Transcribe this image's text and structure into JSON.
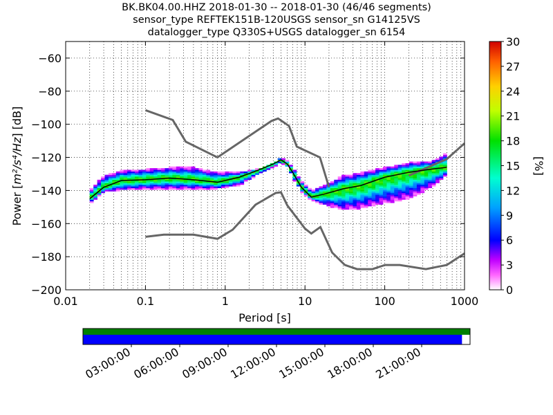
{
  "title": {
    "line1": "BK.BK04.00.HHZ   2018-01-30 -- 2018-01-30  (46/46 segments)",
    "line2": "sensor_type REFTEK151B-120USGS sensor_sn G14125VS",
    "line3": "datalogger_type Q330S+USGS datalogger_sn 6154"
  },
  "chart_data": {
    "type": "heatmap",
    "xlabel": "Period [s]",
    "ylabel": "Power [m²/s⁴/Hz] [dB]",
    "xscale": "log",
    "xlim": [
      0.01,
      1000
    ],
    "ylim": [
      -200,
      -50
    ],
    "xtick_labels": [
      "0.01",
      "0.1",
      "1",
      "10",
      "100",
      "1000"
    ],
    "xticks": [
      0.01,
      0.1,
      1,
      10,
      100,
      1000
    ],
    "yticks": [
      -200,
      -180,
      -160,
      -140,
      -120,
      -100,
      -80,
      -60
    ],
    "ytick_labels": [
      "−200",
      "−180",
      "−160",
      "−140",
      "−120",
      "−100",
      "−80",
      "−60"
    ],
    "grid": true,
    "colorbar": {
      "label": "[%]",
      "min": 0,
      "max": 30,
      "ticks": [
        0,
        3,
        6,
        9,
        12,
        15,
        18,
        21,
        24,
        27,
        30
      ]
    },
    "noise_model_high": [
      [
        0.1,
        -91.5
      ],
      [
        0.22,
        -97.4
      ],
      [
        0.32,
        -110.5
      ],
      [
        0.8,
        -120
      ],
      [
        3.8,
        -98
      ],
      [
        4.6,
        -96.5
      ],
      [
        6.3,
        -101
      ],
      [
        7.9,
        -113.5
      ],
      [
        15.4,
        -120
      ],
      [
        20,
        -138
      ]
    ],
    "noise_model_low": [
      [
        0.1,
        -168
      ],
      [
        0.17,
        -166.7
      ],
      [
        0.4,
        -166.7
      ],
      [
        0.8,
        -169.2
      ],
      [
        1.24,
        -163.7
      ],
      [
        2.4,
        -148.6
      ],
      [
        4.3,
        -141.5
      ],
      [
        5,
        -141.1
      ],
      [
        6,
        -149
      ],
      [
        10,
        -163
      ],
      [
        12,
        -166
      ],
      [
        15.6,
        -162.1
      ],
      [
        21.9,
        -177.5
      ],
      [
        31.6,
        -185
      ],
      [
        45,
        -187.5
      ],
      [
        70,
        -187.5
      ],
      [
        101,
        -185
      ],
      [
        154,
        -185
      ],
      [
        328,
        -187.5
      ],
      [
        600,
        -185
      ],
      [
        1000,
        -178
      ]
    ],
    "noise_model_high_ext": [
      [
        200,
        -131
      ],
      [
        600,
        -121
      ],
      [
        1000,
        -111.5
      ]
    ],
    "mean_psd": [
      [
        0.02,
        -145
      ],
      [
        0.03,
        -138
      ],
      [
        0.05,
        -134
      ],
      [
        0.1,
        -133.5
      ],
      [
        0.2,
        -132.5
      ],
      [
        0.4,
        -133.5
      ],
      [
        0.8,
        -135
      ],
      [
        1.5,
        -132
      ],
      [
        2.5,
        -128
      ],
      [
        4,
        -124
      ],
      [
        5,
        -121.5
      ],
      [
        6,
        -124
      ],
      [
        7,
        -129
      ],
      [
        9,
        -138
      ],
      [
        12,
        -144
      ],
      [
        18,
        -142
      ],
      [
        30,
        -139
      ],
      [
        50,
        -137
      ],
      [
        100,
        -132
      ],
      [
        200,
        -129
      ],
      [
        400,
        -127
      ],
      [
        600,
        -126
      ]
    ],
    "psd_band_upper": [
      [
        0.02,
        -140
      ],
      [
        0.03,
        -131
      ],
      [
        0.05,
        -128
      ],
      [
        0.1,
        -127
      ],
      [
        0.2,
        -126
      ],
      [
        0.4,
        -126
      ],
      [
        0.8,
        -129
      ],
      [
        1.5,
        -129
      ],
      [
        2.5,
        -127
      ],
      [
        4,
        -123
      ],
      [
        5,
        -120
      ],
      [
        6,
        -122
      ],
      [
        7,
        -126
      ],
      [
        9,
        -134
      ],
      [
        12,
        -140
      ],
      [
        18,
        -136
      ],
      [
        30,
        -131
      ],
      [
        50,
        -129
      ],
      [
        100,
        -126
      ],
      [
        200,
        -123
      ],
      [
        400,
        -122
      ],
      [
        600,
        -117
      ]
    ],
    "psd_band_lower": [
      [
        0.02,
        -148
      ],
      [
        0.03,
        -141
      ],
      [
        0.05,
        -140
      ],
      [
        0.1,
        -139
      ],
      [
        0.2,
        -139
      ],
      [
        0.4,
        -139
      ],
      [
        0.8,
        -139
      ],
      [
        1.5,
        -137
      ],
      [
        2.5,
        -131
      ],
      [
        4,
        -126
      ],
      [
        5,
        -123
      ],
      [
        6,
        -126
      ],
      [
        7,
        -132
      ],
      [
        9,
        -141
      ],
      [
        12,
        -146
      ],
      [
        18,
        -149
      ],
      [
        30,
        -152
      ],
      [
        50,
        -151
      ],
      [
        100,
        -148
      ],
      [
        200,
        -145
      ],
      [
        400,
        -138
      ],
      [
        600,
        -131
      ]
    ]
  },
  "time_axis": {
    "tick_labels": [
      "03:00:00",
      "06:00:00",
      "09:00:00",
      "12:00:00",
      "15:00:00",
      "18:00:00",
      "21:00:00"
    ],
    "data_coverage_end_hour": 23.5,
    "colors": {
      "coverage_top": "#008000",
      "coverage_bottom": "#0000ff"
    }
  }
}
